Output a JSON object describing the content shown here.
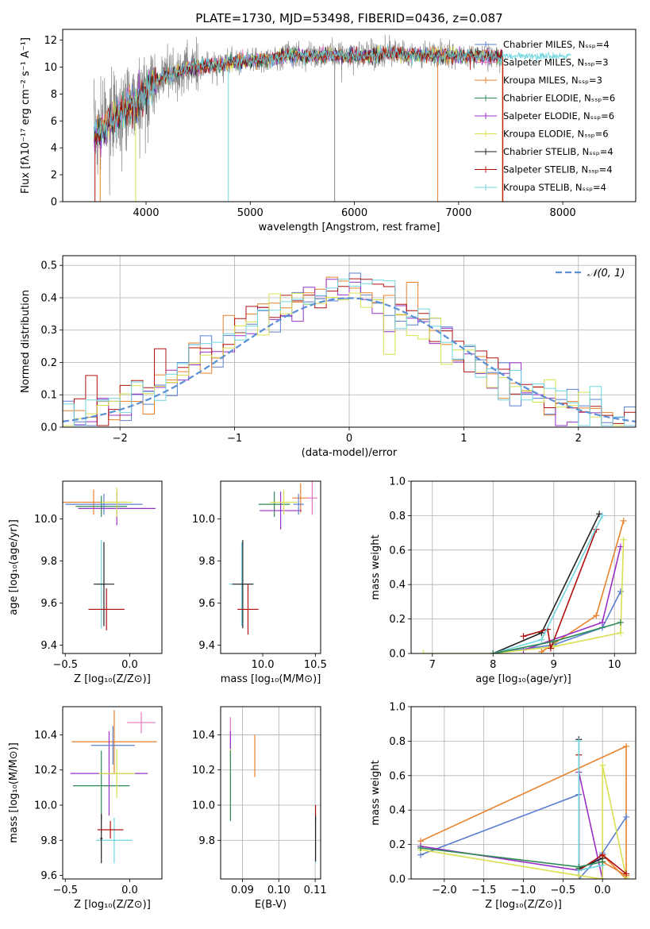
{
  "chart_data": [
    {
      "id": "spectrum",
      "type": "line",
      "title": "PLATE=1730, MJD=53498, FIBERID=0436, z=0.087",
      "xlabel": "wavelength [Angstrom, rest frame]",
      "ylabel": "Flux [fλ10⁻¹⁷ erg cm⁻² s⁻¹ A⁻¹]",
      "xlim": [
        3200,
        8700
      ],
      "ylim": [
        0,
        12.8
      ],
      "xticks": [
        4000,
        5000,
        6000,
        7000,
        8000
      ],
      "yticks": [
        0,
        2,
        4,
        6,
        8,
        10,
        12
      ],
      "grid": false,
      "legend_position": "right",
      "spectrum_continuum": {
        "x": [
          3500,
          3600,
          3700,
          3800,
          3900,
          4000,
          4100,
          4200,
          4300,
          4400,
          4500,
          4600,
          4800,
          5000,
          5200,
          5400,
          5600,
          5800,
          6000,
          6200,
          6400,
          6600,
          6800,
          7000,
          7200,
          7400
        ],
        "y": [
          5.0,
          5.6,
          6.2,
          6.9,
          7.3,
          8.2,
          9.0,
          9.4,
          9.6,
          9.9,
          10.0,
          10.1,
          10.3,
          10.5,
          10.6,
          10.9,
          10.8,
          10.9,
          10.8,
          10.9,
          11.0,
          10.9,
          10.9,
          10.8,
          10.8,
          10.8
        ]
      },
      "legend": [
        {
          "name": "Chabrier MILES, Nₛₛₚ=4",
          "color": "#5b7fd1"
        },
        {
          "name": "Salpeter MILES, Nₛₛₚ=3",
          "color": "#e377c2"
        },
        {
          "name": "Kroupa MILES, Nₛₛₚ=3",
          "color": "#e8812c"
        },
        {
          "name": "Chabrier ELODIE, Nₛₛₚ=6",
          "color": "#2e8b57"
        },
        {
          "name": "Salpeter ELODIE, Nₛₛₚ=6",
          "color": "#9b30c8"
        },
        {
          "name": "Kroupa ELODIE, Nₛₛₚ=6",
          "color": "#d8e050"
        },
        {
          "name": "Chabrier STELIB, Nₛₛₚ=4",
          "color": "#222222"
        },
        {
          "name": "Salpeter STELIB, Nₛₛₚ=4",
          "color": "#b01010"
        },
        {
          "name": "Kroupa STELIB, Nₛₛₚ=4",
          "color": "#6fd6e0"
        }
      ]
    },
    {
      "id": "residuals",
      "type": "histogram",
      "xlabel": "(data-model)/error",
      "ylabel": "Normed distribution",
      "xlim": [
        -2.5,
        2.5
      ],
      "ylim": [
        0,
        0.53
      ],
      "xticks": [
        -2,
        -1,
        0,
        1,
        2
      ],
      "yticks": [
        0.0,
        0.1,
        0.2,
        0.3,
        0.4,
        0.5
      ],
      "grid": true,
      "legend": [
        {
          "name": "𝒩(0, 1)",
          "color": "#5b8fd6"
        }
      ],
      "legend_position": "top-right",
      "bin_width": 0.1,
      "bins_start": -2.5,
      "colors": [
        "#5b7fd1",
        "#e8812c",
        "#9b30c8",
        "#b01010",
        "#d8e050",
        "#6fd6e0"
      ],
      "series_offsets": [
        0,
        0.012,
        -0.015,
        0.02,
        -0.008,
        0.006
      ]
    },
    {
      "id": "age_vs_Z",
      "type": "errorbar",
      "xlabel": "Z [log₁₀(Z/Z⊙)]",
      "ylabel": "age  [log₁₀(age/yr)]",
      "xlim": [
        -0.52,
        0.25
      ],
      "ylim": [
        9.36,
        10.18
      ],
      "xticks": [
        -0.5,
        0.0
      ],
      "yticks": [
        9.4,
        9.6,
        9.8,
        10.0
      ],
      "grid": false,
      "points": [
        {
          "x": -0.28,
          "y": 10.08,
          "xerr": 0.25,
          "yerr": 0.06,
          "color": "#e8812c"
        },
        {
          "x": -0.22,
          "y": 10.06,
          "xerr": 0.2,
          "yerr": 0.05,
          "color": "#2e8b57"
        },
        {
          "x": -0.1,
          "y": 10.05,
          "xerr": 0.3,
          "yerr": 0.08,
          "color": "#9b30c8"
        },
        {
          "x": -0.2,
          "y": 10.07,
          "xerr": 0.3,
          "yerr": 0.05,
          "color": "#5b7fd1"
        },
        {
          "x": -0.1,
          "y": 10.08,
          "xerr": 0.12,
          "yerr": 0.07,
          "color": "#d8e050"
        },
        {
          "x": -0.22,
          "y": 9.69,
          "xerr": 0.03,
          "yerr": 0.21,
          "color": "#6fd6e0"
        },
        {
          "x": -0.2,
          "y": 9.69,
          "xerr": 0.08,
          "yerr": 0.2,
          "color": "#222222"
        },
        {
          "x": -0.18,
          "y": 9.57,
          "xerr": 0.14,
          "yerr": 0.1,
          "color": "#b01010"
        }
      ]
    },
    {
      "id": "age_vs_mass",
      "type": "errorbar",
      "xlabel": "mass [log₁₀(M/M⊙)]",
      "ylabel": "",
      "xlim": [
        9.6,
        10.55
      ],
      "ylim": [
        9.36,
        10.18
      ],
      "xticks": [
        10.0,
        10.5
      ],
      "yticks": [
        9.4,
        9.6,
        9.8,
        10.0
      ],
      "grid": false,
      "points": [
        {
          "x": 10.36,
          "y": 10.1,
          "xerr": 0.08,
          "yerr": 0.07,
          "color": "#e8812c"
        },
        {
          "x": 10.11,
          "y": 10.07,
          "xerr": 0.15,
          "yerr": 0.06,
          "color": "#2e8b57"
        },
        {
          "x": 10.17,
          "y": 10.04,
          "xerr": 0.2,
          "yerr": 0.09,
          "color": "#9b30c8"
        },
        {
          "x": 10.34,
          "y": 10.07,
          "xerr": 0.05,
          "yerr": 0.05,
          "color": "#5b7fd1"
        },
        {
          "x": 10.2,
          "y": 10.08,
          "xerr": 0.13,
          "yerr": 0.06,
          "color": "#d8e050"
        },
        {
          "x": 10.47,
          "y": 10.1,
          "xerr": 0.05,
          "yerr": 0.08,
          "color": "#e377c2"
        },
        {
          "x": 9.8,
          "y": 9.69,
          "xerr": 0.12,
          "yerr": 0.2,
          "color": "#6fd6e0"
        },
        {
          "x": 9.81,
          "y": 9.69,
          "xerr": 0.1,
          "yerr": 0.21,
          "color": "#222222"
        },
        {
          "x": 9.86,
          "y": 9.57,
          "xerr": 0.1,
          "yerr": 0.12,
          "color": "#b01010"
        }
      ]
    },
    {
      "id": "mass_weight_vs_age",
      "type": "line",
      "xlabel": "age  [log₁₀(age/yr)]",
      "ylabel": "mass weight",
      "xlim": [
        6.65,
        10.35
      ],
      "ylim": [
        0,
        1.0
      ],
      "xticks": [
        7,
        8,
        9,
        10
      ],
      "yticks": [
        0.0,
        0.2,
        0.4,
        0.6,
        0.8,
        1.0
      ],
      "grid": true,
      "series": [
        {
          "color": "#5b7fd1",
          "x": [
            8.0,
            9.0,
            9.8,
            10.1
          ],
          "y": [
            0.0,
            0.05,
            0.15,
            0.36
          ]
        },
        {
          "color": "#e8812c",
          "x": [
            8.8,
            9.7,
            10.15
          ],
          "y": [
            0.01,
            0.22,
            0.77
          ]
        },
        {
          "color": "#9b30c8",
          "x": [
            8.5,
            9.8,
            10.1
          ],
          "y": [
            0.02,
            0.18,
            0.62
          ]
        },
        {
          "color": "#d8e050",
          "x": [
            6.85,
            8.0,
            9.0,
            10.1,
            10.15
          ],
          "y": [
            0.0,
            0.0,
            0.04,
            0.12,
            0.66
          ]
        },
        {
          "color": "#222222",
          "x": [
            8.0,
            8.8,
            9.75
          ],
          "y": [
            0.0,
            0.12,
            0.81
          ]
        },
        {
          "color": "#b01010",
          "x": [
            8.5,
            8.9,
            8.95,
            9.7
          ],
          "y": [
            0.1,
            0.14,
            0.03,
            0.72
          ]
        },
        {
          "color": "#6fd6e0",
          "x": [
            8.0,
            8.8,
            9.8
          ],
          "y": [
            0.0,
            0.08,
            0.8
          ]
        },
        {
          "color": "#2e8b57",
          "x": [
            8.0,
            9.0,
            10.1
          ],
          "y": [
            0.0,
            0.07,
            0.18
          ]
        }
      ]
    },
    {
      "id": "mass_vs_Z",
      "type": "errorbar",
      "xlabel": "Z [log₁₀(Z/Z⊙)]",
      "ylabel": "mass [log₁₀(M/M⊙)]",
      "xlim": [
        -0.52,
        0.25
      ],
      "ylim": [
        9.58,
        10.56
      ],
      "xticks": [
        -0.5,
        0.0
      ],
      "yticks": [
        9.6,
        9.8,
        10.0,
        10.2,
        10.4
      ],
      "grid": false,
      "points": [
        {
          "x": -0.12,
          "y": 10.36,
          "xerr": 0.33,
          "yerr": 0.18,
          "color": "#e8812c"
        },
        {
          "x": -0.22,
          "y": 10.11,
          "xerr": 0.22,
          "yerr": 0.2,
          "color": "#2e8b57"
        },
        {
          "x": -0.16,
          "y": 10.18,
          "xerr": 0.3,
          "yerr": 0.24,
          "color": "#9b30c8"
        },
        {
          "x": -0.13,
          "y": 10.34,
          "xerr": 0.17,
          "yerr": 0.11,
          "color": "#5b7fd1"
        },
        {
          "x": -0.1,
          "y": 10.18,
          "xerr": 0.14,
          "yerr": 0.14,
          "color": "#d8e050"
        },
        {
          "x": 0.09,
          "y": 10.47,
          "xerr": 0.11,
          "yerr": 0.06,
          "color": "#e377c2"
        },
        {
          "x": -0.12,
          "y": 9.8,
          "xerr": 0.14,
          "yerr": 0.13,
          "color": "#6fd6e0"
        },
        {
          "x": -0.22,
          "y": 9.81,
          "xerr": 0.01,
          "yerr": 0.14,
          "color": "#222222"
        },
        {
          "x": -0.15,
          "y": 9.86,
          "xerr": 0.1,
          "yerr": 0.05,
          "color": "#b01010"
        }
      ]
    },
    {
      "id": "mass_vs_EBV",
      "type": "errorbar",
      "xlabel": "E(B-V)",
      "ylabel": "",
      "xlim": [
        0.084,
        0.1115
      ],
      "ylim": [
        9.58,
        10.56
      ],
      "xticks": [
        0.09,
        0.1,
        0.11
      ],
      "yticks": [
        9.8,
        10.0,
        10.2,
        10.4
      ],
      "grid": true,
      "points": [
        {
          "x": 0.0867,
          "y": 10.38,
          "xerr": 0,
          "yerr": 0.12,
          "color": "#e377c2"
        },
        {
          "x": 0.0867,
          "y": 10.36,
          "xerr": 0,
          "yerr": 0.06,
          "color": "#9b30c8"
        },
        {
          "x": 0.0867,
          "y": 10.12,
          "xerr": 0,
          "yerr": 0.2,
          "color": "#d8e050"
        },
        {
          "x": 0.0867,
          "y": 10.11,
          "xerr": 0,
          "yerr": 0.2,
          "color": "#2e8b57"
        },
        {
          "x": 0.0934,
          "y": 10.28,
          "xerr": 0,
          "yerr": 0.12,
          "color": "#e8812c"
        },
        {
          "x": 0.1101,
          "y": 9.95,
          "xerr": 0,
          "yerr": 0.05,
          "color": "#b01010"
        },
        {
          "x": 0.1101,
          "y": 9.8,
          "xerr": 0,
          "yerr": 0.13,
          "color": "#6fd6e0"
        },
        {
          "x": 0.1101,
          "y": 9.81,
          "xerr": 0,
          "yerr": 0.13,
          "color": "#222222"
        }
      ]
    },
    {
      "id": "mass_weight_vs_Z",
      "type": "line",
      "xlabel": "Z [log₁₀(Z/Z⊙)]",
      "ylabel": "mass weight",
      "xlim": [
        -2.42,
        0.42
      ],
      "ylim": [
        0,
        1.0
      ],
      "xticks": [
        -2.0,
        -1.5,
        -1.0,
        -0.5,
        0.0
      ],
      "yticks": [
        0.0,
        0.2,
        0.4,
        0.6,
        0.8,
        1.0
      ],
      "grid": true,
      "series": [
        {
          "color": "#e8812c",
          "x": [
            -2.3,
            0.3,
            0.3,
            0.0,
            0.0,
            0.3
          ],
          "y": [
            0.22,
            0.77,
            0.0,
            0.14,
            0.1,
            0.02
          ]
        },
        {
          "color": "#5b7fd1",
          "x": [
            -2.3,
            -0.3,
            -0.3,
            0.0,
            0.3
          ],
          "y": [
            0.14,
            0.49,
            0.0,
            0.15,
            0.36
          ]
        },
        {
          "color": "#9b30c8",
          "x": [
            -2.3,
            -0.3,
            -0.3,
            0.0,
            0.0
          ],
          "y": [
            0.19,
            0.05,
            0.62,
            0.0,
            0.12
          ]
        },
        {
          "color": "#d8e050",
          "x": [
            -2.3,
            -0.3,
            0.0,
            0.0,
            0.3
          ],
          "y": [
            0.17,
            0.02,
            0.0,
            0.66,
            0.01
          ]
        },
        {
          "color": "#222222",
          "x": [
            -0.3,
            -0.3,
            0.0
          ],
          "y": [
            0.81,
            0.06,
            0.12
          ]
        },
        {
          "color": "#b01010",
          "x": [
            -0.3,
            -0.3,
            0.0,
            0.3
          ],
          "y": [
            0.72,
            0.05,
            0.14,
            0.03
          ]
        },
        {
          "color": "#6fd6e0",
          "x": [
            -0.3,
            -0.3,
            0.0
          ],
          "y": [
            0.8,
            0.05,
            0.08
          ]
        },
        {
          "color": "#2e8b57",
          "x": [
            -2.3,
            -0.3,
            0.0
          ],
          "y": [
            0.18,
            0.07,
            0.1
          ]
        }
      ]
    }
  ]
}
